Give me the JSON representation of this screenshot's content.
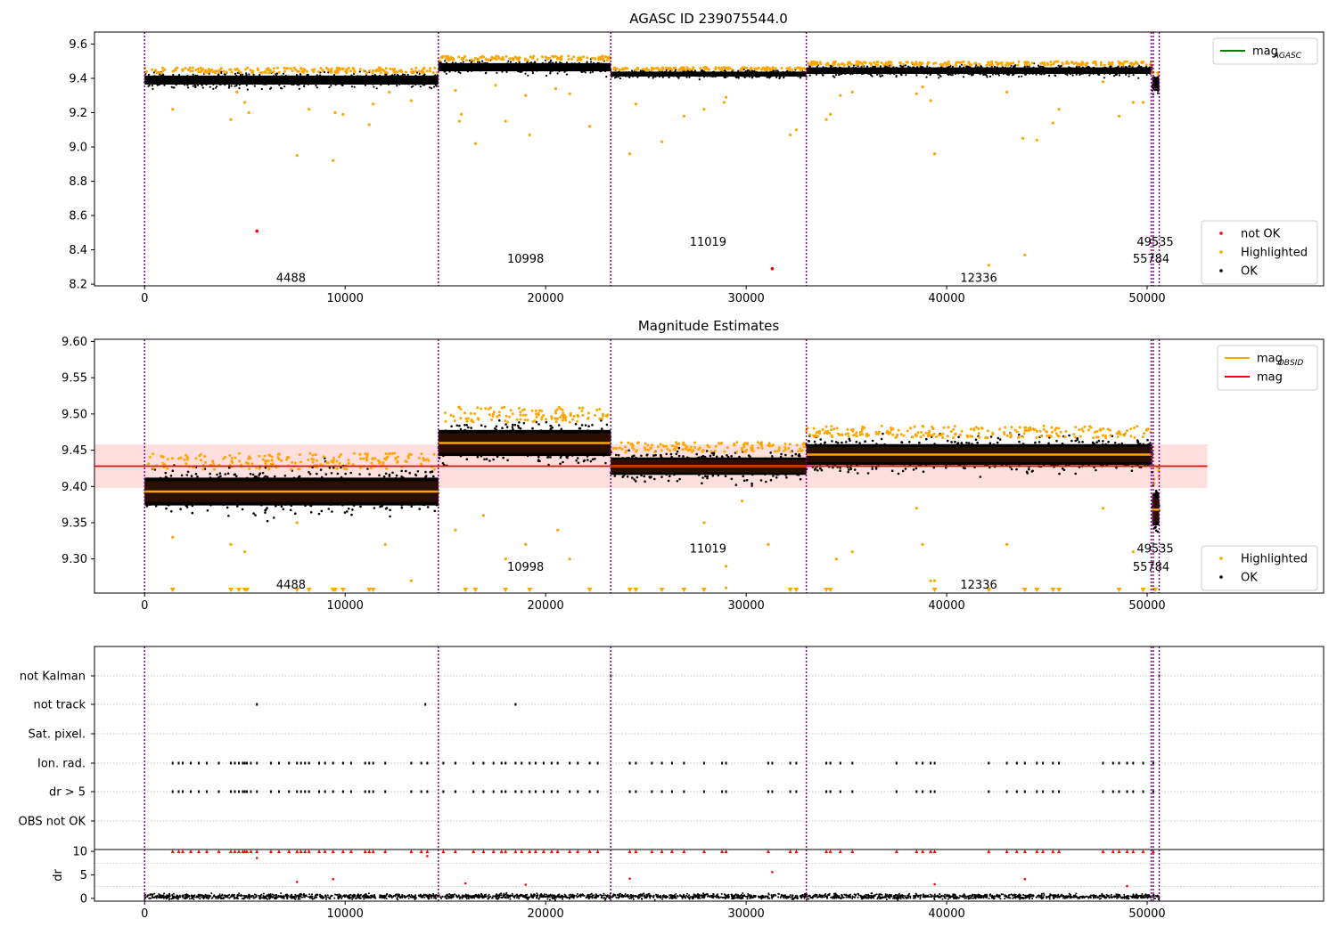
{
  "chart_data": [
    {
      "type": "scatter",
      "title": "AGASC ID 239075544.0",
      "xlim": [
        -2500,
        58800
      ],
      "ylim": [
        8.19,
        9.67
      ],
      "xticks": [
        0,
        10000,
        20000,
        30000,
        40000,
        50000
      ],
      "yticks": [
        8.2,
        8.4,
        8.6,
        8.8,
        9.0,
        9.2,
        9.4,
        9.6
      ],
      "ytick_labels": [
        "8.2",
        "8.4",
        "8.6",
        "8.8",
        "9.0",
        "9.2",
        "9.4",
        "9.6"
      ],
      "segments": [
        {
          "x0": 0,
          "x1": 14650,
          "level": 9.39,
          "spread": 0.022
        },
        {
          "x0": 14650,
          "x1": 23250,
          "level": 9.465,
          "spread": 0.02
        },
        {
          "x0": 23250,
          "x1": 33000,
          "level": 9.425,
          "spread": 0.012
        },
        {
          "x0": 33000,
          "x1": 50250,
          "level": 9.445,
          "spread": 0.016
        },
        {
          "x0": 50250,
          "x1": 50600,
          "level": 9.37,
          "spread": 0.025
        }
      ],
      "highlighted_points": [
        [
          1400,
          9.22
        ],
        [
          4300,
          9.16
        ],
        [
          5000,
          9.26
        ],
        [
          4600,
          9.32
        ],
        [
          5200,
          9.2
        ],
        [
          7600,
          8.95
        ],
        [
          8200,
          9.22
        ],
        [
          9400,
          8.92
        ],
        [
          9500,
          9.2
        ],
        [
          9900,
          9.19
        ],
        [
          11200,
          9.13
        ],
        [
          11400,
          9.25
        ],
        [
          12200,
          9.32
        ],
        [
          13300,
          9.27
        ],
        [
          15500,
          9.33
        ],
        [
          15700,
          9.15
        ],
        [
          15800,
          9.19
        ],
        [
          16500,
          9.02
        ],
        [
          17500,
          9.36
        ],
        [
          18000,
          9.15
        ],
        [
          19000,
          9.3
        ],
        [
          19200,
          9.07
        ],
        [
          20500,
          9.34
        ],
        [
          21200,
          9.31
        ],
        [
          22200,
          9.12
        ],
        [
          24200,
          8.96
        ],
        [
          24500,
          9.25
        ],
        [
          25800,
          9.03
        ],
        [
          26900,
          9.18
        ],
        [
          27900,
          9.22
        ],
        [
          28900,
          9.26
        ],
        [
          29000,
          9.29
        ],
        [
          32200,
          9.07
        ],
        [
          32500,
          9.1
        ],
        [
          34000,
          9.16
        ],
        [
          34200,
          9.19
        ],
        [
          34700,
          9.3
        ],
        [
          35300,
          9.32
        ],
        [
          38500,
          9.31
        ],
        [
          38800,
          9.35
        ],
        [
          39200,
          9.27
        ],
        [
          39400,
          8.96
        ],
        [
          42100,
          8.31
        ],
        [
          43000,
          9.32
        ],
        [
          43800,
          9.05
        ],
        [
          43900,
          8.37
        ],
        [
          44500,
          9.04
        ],
        [
          45300,
          9.14
        ],
        [
          45600,
          9.22
        ],
        [
          47800,
          9.38
        ],
        [
          48600,
          9.18
        ],
        [
          49300,
          9.26
        ],
        [
          49800,
          9.26
        ]
      ],
      "not_ok_points": [
        [
          5600,
          8.51
        ],
        [
          31300,
          8.29
        ]
      ],
      "obsids": [
        {
          "label": "4488",
          "x": 7300,
          "y": 8.24
        },
        {
          "label": "10998",
          "x": 19000,
          "y": 8.35
        },
        {
          "label": "11019",
          "x": 28100,
          "y": 8.45
        },
        {
          "label": "12336",
          "x": 41600,
          "y": 8.24
        },
        {
          "label": "49535",
          "x": 50400,
          "y": 8.45
        },
        {
          "label": "55784",
          "x": 50200,
          "y": 8.35
        }
      ],
      "obsid_boundaries": [
        0,
        14650,
        23250,
        33000,
        50200,
        50300,
        50600
      ],
      "legend_top": [
        {
          "name": "mag",
          "sub": "AGASC",
          "color": "#008000",
          "kind": "line"
        }
      ],
      "legend_bottom": [
        {
          "name": "not OK",
          "color": "#ff0000",
          "kind": "dot"
        },
        {
          "name": "Highlighted",
          "color": "#ffa500",
          "kind": "dot"
        },
        {
          "name": "OK",
          "color": "#000000",
          "kind": "dot"
        }
      ]
    },
    {
      "type": "scatter",
      "title": "Magnitude Estimates",
      "xlim": [
        -2500,
        58800
      ],
      "ylim": [
        9.253,
        9.603
      ],
      "xticks": [
        0,
        10000,
        20000,
        30000,
        40000,
        50000
      ],
      "yticks": [
        9.3,
        9.35,
        9.4,
        9.45,
        9.5,
        9.55,
        9.6
      ],
      "ytick_labels": [
        "9.30",
        "9.35",
        "9.40",
        "9.45",
        "9.50",
        "9.55",
        "9.60"
      ],
      "mag": 9.428,
      "mag_band": [
        9.398,
        9.458
      ],
      "mag_line_x": [
        0,
        53000
      ],
      "segments": [
        {
          "x0": 0,
          "x1": 14650,
          "level": 9.393,
          "spread": 0.016
        },
        {
          "x0": 14650,
          "x1": 23250,
          "level": 9.46,
          "spread": 0.015
        },
        {
          "x0": 23250,
          "x1": 33000,
          "level": 9.428,
          "spread": 0.01
        },
        {
          "x0": 33000,
          "x1": 50250,
          "level": 9.444,
          "spread": 0.012
        },
        {
          "x0": 50250,
          "x1": 50600,
          "level": 9.368,
          "spread": 0.018
        }
      ],
      "highlighted_points": [
        [
          1400,
          9.33
        ],
        [
          4300,
          9.32
        ],
        [
          5000,
          9.31
        ],
        [
          7600,
          9.35
        ],
        [
          12000,
          9.32
        ],
        [
          13300,
          9.27
        ],
        [
          15500,
          9.34
        ],
        [
          16900,
          9.36
        ],
        [
          18000,
          9.3
        ],
        [
          19000,
          9.32
        ],
        [
          20600,
          9.34
        ],
        [
          21200,
          9.3
        ],
        [
          27900,
          9.35
        ],
        [
          29000,
          9.29
        ],
        [
          29000,
          9.26
        ],
        [
          29800,
          9.38
        ],
        [
          31100,
          9.32
        ],
        [
          34500,
          9.3
        ],
        [
          35300,
          9.31
        ],
        [
          38500,
          9.37
        ],
        [
          38800,
          9.32
        ],
        [
          39200,
          9.27
        ],
        [
          39400,
          9.27
        ],
        [
          43000,
          9.32
        ],
        [
          47800,
          9.37
        ],
        [
          49300,
          9.31
        ]
      ],
      "low_markers_x": [
        1400,
        4300,
        4700,
        5000,
        5100,
        7600,
        8200,
        9400,
        9500,
        9900,
        11200,
        11400,
        16000,
        16500,
        18000,
        19200,
        22200,
        24200,
        24500,
        25800,
        26900,
        27900,
        32200,
        32500,
        34000,
        34200,
        39400,
        42100,
        43900,
        44500,
        45300,
        45600,
        48600,
        49800,
        50400
      ],
      "obsids": [
        {
          "label": "4488",
          "x": 7300,
          "y": 9.265
        },
        {
          "label": "10998",
          "x": 19000,
          "y": 9.29
        },
        {
          "label": "11019",
          "x": 28100,
          "y": 9.315
        },
        {
          "label": "12336",
          "x": 41600,
          "y": 9.265
        },
        {
          "label": "49535",
          "x": 50400,
          "y": 9.315
        },
        {
          "label": "55784",
          "x": 50200,
          "y": 9.29
        }
      ],
      "obsid_boundaries": [
        0,
        14650,
        23250,
        33000,
        50200,
        50300,
        50600
      ],
      "legend_top": [
        {
          "name": "mag",
          "sub": "OBSID",
          "color": "#ffa500",
          "kind": "line"
        },
        {
          "name": "mag",
          "sub": "",
          "color": "#ff0000",
          "kind": "line"
        }
      ],
      "legend_bottom": [
        {
          "name": "Highlighted",
          "color": "#ffa500",
          "kind": "dot"
        },
        {
          "name": "OK",
          "color": "#000000",
          "kind": "dot"
        }
      ]
    },
    {
      "type": "scatter",
      "title": "",
      "xlim": [
        -2500,
        58800
      ],
      "categories": [
        "not Kalman",
        "not track",
        "Sat. pixel.",
        "Ion. rad.",
        "dr > 5",
        "OBS not OK"
      ],
      "flag_points": {
        "not Kalman": [
          23250,
          50600
        ],
        "not track": [
          5600,
          14000,
          18500
        ],
        "Sat. pixel.": [],
        "Ion. rad.": [
          1400,
          1700,
          1900,
          2300,
          2700,
          3100,
          3700,
          4300,
          4500,
          4700,
          4900,
          5000,
          5100,
          5300,
          5600,
          6300,
          6700,
          7200,
          7600,
          7800,
          8000,
          8200,
          8700,
          9000,
          9400,
          9900,
          10300,
          11000,
          11200,
          11400,
          12000,
          13300,
          13800,
          14100,
          14900,
          15500,
          16400,
          16900,
          17400,
          17800,
          18000,
          18500,
          18800,
          19200,
          19500,
          19900,
          20300,
          20600,
          21200,
          21600,
          22200,
          22600,
          24200,
          24500,
          25300,
          25800,
          26300,
          26900,
          27900,
          28800,
          29000,
          31100,
          31300,
          32200,
          32500,
          34000,
          34200,
          34700,
          35300,
          37500,
          38500,
          38800,
          39200,
          39400,
          42100,
          43000,
          43500,
          43900,
          44500,
          44800,
          45300,
          45600,
          47800,
          48300,
          48600,
          49000,
          49300,
          49800,
          50300
        ],
        "dr > 5": [
          1400,
          1700,
          1900,
          2300,
          2700,
          3100,
          3700,
          4300,
          4500,
          4700,
          4900,
          5000,
          5100,
          5300,
          5600,
          6300,
          6700,
          7200,
          7600,
          7800,
          8000,
          8200,
          8700,
          9000,
          9400,
          9900,
          10300,
          11000,
          11200,
          11400,
          12000,
          13300,
          13800,
          14100,
          14900,
          15500,
          16400,
          16900,
          17400,
          17800,
          18000,
          18500,
          18800,
          19200,
          19500,
          19900,
          20300,
          20600,
          21200,
          21600,
          22200,
          22600,
          24200,
          24500,
          25300,
          25800,
          26300,
          26900,
          27900,
          28800,
          29000,
          31100,
          31300,
          32200,
          32500,
          34000,
          34200,
          34700,
          35300,
          37500,
          38500,
          38800,
          39200,
          39400,
          42100,
          43000,
          43500,
          43900,
          44500,
          44800,
          45300,
          45600,
          47800,
          48300,
          48600,
          49000,
          49300,
          49800,
          50300
        ],
        "OBS not OK": []
      },
      "obsid_boundaries": [
        0,
        14650,
        23250,
        33000,
        50200,
        50300,
        50600
      ]
    },
    {
      "type": "scatter",
      "title": "",
      "ylabel": "dr",
      "xlim": [
        -2500,
        58800
      ],
      "ylim": [
        -0.6,
        10.4
      ],
      "xticks": [
        0,
        10000,
        20000,
        30000,
        40000,
        50000
      ],
      "yticks": [
        0,
        5,
        10
      ],
      "ytick_labels": [
        "0",
        "5",
        "10"
      ],
      "baseline_dr": 0.4,
      "capped_dr_x": [
        1400,
        1700,
        1900,
        2300,
        2700,
        3100,
        3700,
        4300,
        4500,
        4700,
        4900,
        5000,
        5100,
        5300,
        5600,
        6300,
        6700,
        7200,
        7600,
        7800,
        8000,
        8200,
        8700,
        9000,
        9400,
        9900,
        10300,
        11000,
        11200,
        11400,
        12000,
        13300,
        13800,
        14100,
        14900,
        15500,
        16400,
        16900,
        17400,
        17800,
        18000,
        18500,
        18800,
        19200,
        19500,
        19900,
        20300,
        20600,
        21200,
        21600,
        22200,
        22600,
        24200,
        24500,
        25300,
        25800,
        26300,
        26900,
        27900,
        28800,
        29000,
        31100,
        32200,
        32500,
        34000,
        34200,
        34700,
        35300,
        37500,
        38500,
        38800,
        39200,
        39400,
        42100,
        43000,
        43500,
        43900,
        44500,
        44800,
        45300,
        45600,
        47800,
        48300,
        48600,
        49000,
        49300,
        49800,
        50300
      ],
      "mid_dr_points": [
        [
          5600,
          8.6
        ],
        [
          7600,
          3.5
        ],
        [
          9400,
          4.1
        ],
        [
          14100,
          9.0
        ],
        [
          16000,
          3.2
        ],
        [
          24200,
          4.2
        ],
        [
          31300,
          5.6
        ],
        [
          43900,
          4.1
        ],
        [
          19000,
          2.9
        ],
        [
          39400,
          3.0
        ],
        [
          49000,
          2.6
        ]
      ],
      "obsid_boundaries": [
        0,
        14650,
        23250,
        33000,
        50200,
        50300,
        50600
      ]
    }
  ],
  "colors": {
    "ok": "#000000",
    "highlighted": "#ffa500",
    "not_ok": "#ff0000",
    "mag_line": "#ff0000",
    "mag_band": "#ffcccc",
    "obsid_mean": "#ffa500",
    "boundary": "#800080",
    "grid": "#b0b0b0",
    "dark_fill": "#2a0e00"
  }
}
